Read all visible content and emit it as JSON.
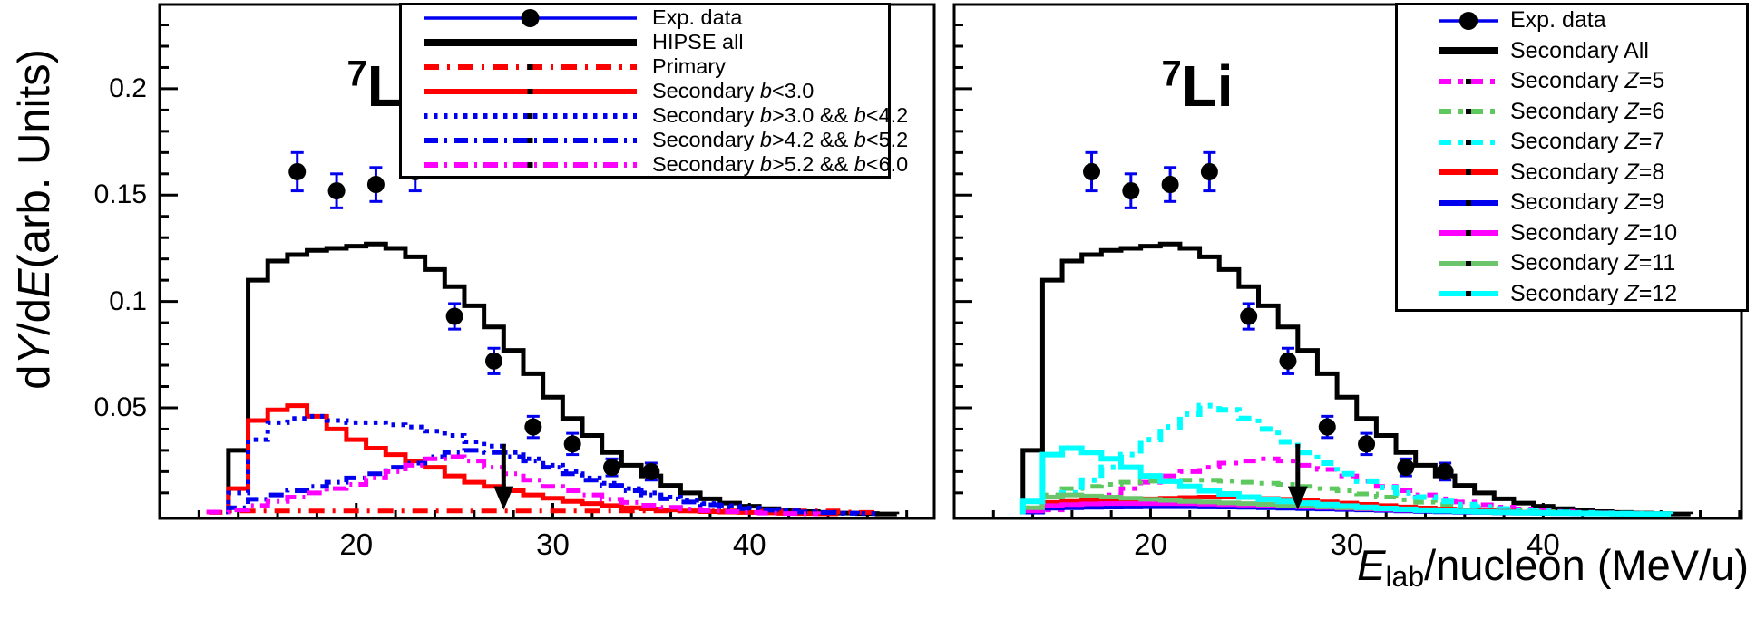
{
  "figure": {
    "background": "#ffffff",
    "ylabel_text": "dY/dE(arb. Units)",
    "xlabel_text": "E_lab/nucleon (MeV/u)",
    "ylabel_parts": [
      {
        "text": "d",
        "style": "normal"
      },
      {
        "text": "Y",
        "style": "italic"
      },
      {
        "text": "/d",
        "style": "normal"
      },
      {
        "text": "E",
        "style": "italic"
      },
      {
        "text": "(arb. Units)",
        "style": "normal"
      }
    ],
    "xlabel_parts": [
      {
        "text": "E",
        "style": "italic"
      },
      {
        "text": "lab",
        "style": "sub"
      },
      {
        "text": "/nucleon (MeV/u)",
        "style": "normal"
      }
    ],
    "colors": {
      "black": "#000000",
      "blue": "#0000ee",
      "red": "#ff0000",
      "magenta": "#ff00ff",
      "cyan": "#00ffff",
      "green_dashed": "#5dc85d",
      "green_solid": "#6cc46c",
      "exp_marker": "#000000",
      "exp_errorbar": "#0000ee"
    }
  },
  "chart_data": [
    {
      "type": "line",
      "panel": "left",
      "title": "7Li",
      "title_sup": "7",
      "title_main": "Li",
      "xlabel": "E_lab/nucleon (MeV/u)",
      "ylabel": "dY/dE(arb. Units)",
      "xlim": [
        10,
        49.4
      ],
      "ylim": [
        0,
        0.24
      ],
      "xticks": [
        20,
        30,
        40
      ],
      "xtick_labels": [
        "20",
        "30",
        "40"
      ],
      "yticks": [
        0.05,
        0.1,
        0.15,
        0.2
      ],
      "ytick_labels": [
        "0.05",
        "0.1",
        "0.15",
        "0.2"
      ],
      "x_minor_step": 2,
      "y_minor_step": 0.01,
      "grid": false,
      "legend_position": "top-right-inside",
      "arrow": {
        "x": 27.5,
        "y_from": 0.033,
        "y_to": 0.002,
        "color": "#000000"
      },
      "exp_data": {
        "label": "Exp. data",
        "marker": "circle",
        "marker_color": "#000000",
        "line_color": "#0000ee",
        "x": [
          17,
          19,
          21,
          23,
          25,
          27,
          29,
          31,
          33,
          35
        ],
        "y": [
          0.161,
          0.152,
          0.155,
          0.161,
          0.093,
          0.072,
          0.041,
          0.033,
          0.022,
          0.02
        ],
        "yerr": [
          0.009,
          0.008,
          0.008,
          0.009,
          0.006,
          0.006,
          0.005,
          0.005,
          0.004,
          0.004
        ]
      },
      "series": [
        {
          "name": "HIPSE all",
          "color": "#000000",
          "dash": "",
          "width": 5,
          "x_start": 14,
          "bin_width": 1,
          "y": [
            0.03,
            0.11,
            0.119,
            0.122,
            0.124,
            0.125,
            0.126,
            0.127,
            0.125,
            0.121,
            0.115,
            0.107,
            0.098,
            0.088,
            0.077,
            0.066,
            0.055,
            0.045,
            0.037,
            0.029,
            0.023,
            0.018,
            0.0135,
            0.01,
            0.0072,
            0.0052,
            0.0037,
            0.0026,
            0.0018,
            0.0012,
            0.0008,
            0.0005,
            0.0003,
            0.0001
          ]
        },
        {
          "name": "Primary",
          "color": "#ff0000",
          "dash": "17 9 3 9",
          "width": 5,
          "x_start": 13,
          "bin_width": 1,
          "y": [
            0.0008,
            0.0015,
            0.0015,
            0.0015,
            0.0015,
            0.0015,
            0.0015,
            0.0015,
            0.0015,
            0.0015,
            0.0015,
            0.0015,
            0.0015,
            0.0015,
            0.0015,
            0.0015,
            0.0015,
            0.0015,
            0.0015,
            0.0015,
            0.0015,
            0.0015,
            0.0015,
            0.0015,
            0.0015,
            0.0015,
            0.0015,
            0.0015,
            0.0015,
            0.0015,
            0.0015,
            0.0015,
            0.001,
            0.0008
          ]
        },
        {
          "name": "Secondary b<3.0",
          "color": "#ff0000",
          "dash": "",
          "width": 5,
          "x_start": 14,
          "bin_width": 1,
          "y": [
            0.012,
            0.044,
            0.049,
            0.051,
            0.046,
            0.04,
            0.035,
            0.031,
            0.028,
            0.025,
            0.022,
            0.018,
            0.015,
            0.013,
            0.011,
            0.009,
            0.0075,
            0.006,
            0.005,
            0.004,
            0.003,
            0.0025,
            0.002,
            0.0015,
            0.0012,
            0.001,
            0.0008,
            0.0006,
            0.0004,
            0.0003,
            0.0002
          ]
        },
        {
          "name": "Secondary b>3.0 && b<4.2",
          "color": "#0000ee",
          "dash": "4.5 6.5",
          "width": 5,
          "x_start": 14,
          "bin_width": 1,
          "y": [
            0.01,
            0.035,
            0.043,
            0.045,
            0.046,
            0.044,
            0.043,
            0.043,
            0.042,
            0.041,
            0.039,
            0.037,
            0.034,
            0.032,
            0.029,
            0.026,
            0.023,
            0.02,
            0.017,
            0.0145,
            0.012,
            0.01,
            0.008,
            0.0065,
            0.005,
            0.004,
            0.003,
            0.0022,
            0.0016,
            0.0011,
            0.0008,
            0.0005,
            0.0003
          ]
        },
        {
          "name": "Secondary b>4.2 && b<5.2",
          "color": "#0000ee",
          "dash": "16 7 3 7",
          "width": 5,
          "x_start": 14,
          "bin_width": 1,
          "y": [
            0.003,
            0.007,
            0.009,
            0.011,
            0.013,
            0.015,
            0.017,
            0.019,
            0.022,
            0.024,
            0.027,
            0.029,
            0.03,
            0.029,
            0.027,
            0.025,
            0.022,
            0.019,
            0.016,
            0.0135,
            0.011,
            0.009,
            0.0072,
            0.0057,
            0.0044,
            0.0034,
            0.0026,
            0.0019,
            0.0014,
            0.001,
            0.0007,
            0.0004
          ]
        },
        {
          "name": "Secondary b>5.2 && b<6.0",
          "color": "#ff00ff",
          "dash": "16 7 3 7",
          "width": 5,
          "x_start": 13,
          "bin_width": 1,
          "y": [
            0.001,
            0.002,
            0.004,
            0.006,
            0.008,
            0.01,
            0.012,
            0.014,
            0.017,
            0.02,
            0.023,
            0.026,
            0.027,
            0.025,
            0.022,
            0.019,
            0.016,
            0.013,
            0.011,
            0.009,
            0.007,
            0.0055,
            0.0042,
            0.0032,
            0.0024,
            0.0017,
            0.0012,
            0.0008,
            0.0005,
            0.0003,
            0.0002
          ]
        }
      ]
    },
    {
      "type": "line",
      "panel": "right",
      "title": "7Li",
      "title_sup": "7",
      "title_main": "Li",
      "xlabel": "E_lab/nucleon (MeV/u)",
      "ylabel": "dY/dE(arb. Units)",
      "xlim": [
        10,
        50.1
      ],
      "ylim": [
        0,
        0.24
      ],
      "xticks": [
        20,
        30,
        40
      ],
      "xtick_labels": [
        "20",
        "30",
        "40"
      ],
      "yticks": [
        0.05,
        0.1,
        0.15,
        0.2
      ],
      "ytick_labels": [],
      "x_minor_step": 2,
      "y_minor_step": 0.01,
      "grid": false,
      "legend_position": "top-right-inside",
      "arrow": {
        "x": 27.5,
        "y_from": 0.033,
        "y_to": 0.002,
        "color": "#000000"
      },
      "exp_data": {
        "label": "Exp. data",
        "marker": "circle",
        "marker_color": "#000000",
        "line_color": "#0000ee",
        "x": [
          17,
          19,
          21,
          23,
          25,
          27,
          29,
          31,
          33,
          35
        ],
        "y": [
          0.161,
          0.152,
          0.155,
          0.161,
          0.093,
          0.072,
          0.041,
          0.033,
          0.022,
          0.02
        ],
        "yerr": [
          0.009,
          0.008,
          0.008,
          0.009,
          0.006,
          0.006,
          0.005,
          0.005,
          0.004,
          0.004
        ]
      },
      "series": [
        {
          "name": "Secondary All",
          "color": "#000000",
          "dash": "",
          "width": 5,
          "x_start": 14,
          "bin_width": 1,
          "y": [
            0.03,
            0.11,
            0.119,
            0.122,
            0.124,
            0.125,
            0.126,
            0.127,
            0.125,
            0.121,
            0.115,
            0.107,
            0.098,
            0.088,
            0.077,
            0.066,
            0.055,
            0.045,
            0.037,
            0.029,
            0.023,
            0.018,
            0.0135,
            0.01,
            0.0072,
            0.0052,
            0.0037,
            0.0026,
            0.0018,
            0.0012,
            0.0008,
            0.0005,
            0.0003,
            0.0001
          ]
        },
        {
          "name": "Secondary Z=5",
          "color": "#ff00ff",
          "dash": "14 8 5 8",
          "width": 5,
          "x_start": 15,
          "bin_width": 1,
          "y": [
            0.002,
            0.004,
            0.006,
            0.009,
            0.012,
            0.015,
            0.018,
            0.02,
            0.022,
            0.024,
            0.025,
            0.026,
            0.025,
            0.023,
            0.021,
            0.018,
            0.0155,
            0.013,
            0.011,
            0.009,
            0.0072,
            0.0057,
            0.0044,
            0.0033,
            0.0025,
            0.0018,
            0.0013,
            0.0009,
            0.0006,
            0.0004
          ]
        },
        {
          "name": "Secondary Z=6",
          "color": "#5dc85d",
          "dash": "14 8 5 8",
          "width": 5,
          "x_start": 14,
          "bin_width": 1,
          "y": [
            0.003,
            0.009,
            0.012,
            0.013,
            0.014,
            0.015,
            0.0155,
            0.016,
            0.016,
            0.016,
            0.0155,
            0.015,
            0.0145,
            0.014,
            0.013,
            0.012,
            0.011,
            0.0095,
            0.008,
            0.0068,
            0.0056,
            0.0045,
            0.0036,
            0.0028,
            0.0021,
            0.0016,
            0.0012,
            0.0008,
            0.0005,
            0.0003
          ]
        },
        {
          "name": "Secondary Z=7",
          "color": "#00ffff",
          "dash": "14 8 5 8",
          "width": 6,
          "x_start": 15,
          "bin_width": 1,
          "y": [
            0.004,
            0.01,
            0.016,
            0.022,
            0.028,
            0.035,
            0.041,
            0.047,
            0.051,
            0.049,
            0.045,
            0.04,
            0.034,
            0.029,
            0.024,
            0.019,
            0.0155,
            0.0125,
            0.01,
            0.008,
            0.006,
            0.0045,
            0.0034,
            0.0025,
            0.0018,
            0.0013,
            0.0009,
            0.0006,
            0.0004,
            0.0003,
            0.0002
          ]
        },
        {
          "name": "Secondary Z=8",
          "color": "#ff0000",
          "dash": "",
          "width": 5,
          "x_start": 14,
          "bin_width": 1,
          "y": [
            0.002,
            0.0055,
            0.006,
            0.0065,
            0.007,
            0.007,
            0.0072,
            0.0075,
            0.0078,
            0.008,
            0.008,
            0.0078,
            0.0074,
            0.007,
            0.0064,
            0.0058,
            0.0052,
            0.0046,
            0.004,
            0.0034,
            0.0029,
            0.0024,
            0.002,
            0.0016,
            0.0013,
            0.001,
            0.0008,
            0.0006,
            0.0005,
            0.0004,
            0.0003,
            0.0002,
            0.0001
          ]
        },
        {
          "name": "Secondary Z=9",
          "color": "#0000ee",
          "dash": "",
          "width": 5,
          "x_start": 14,
          "bin_width": 1,
          "y": [
            0.001,
            0.0028,
            0.003,
            0.0032,
            0.0033,
            0.0034,
            0.0035,
            0.0035,
            0.0035,
            0.0034,
            0.0033,
            0.0032,
            0.003,
            0.0028,
            0.0026,
            0.0024,
            0.0022,
            0.002,
            0.0018,
            0.0015,
            0.0013,
            0.0011,
            0.0009,
            0.0008,
            0.0006,
            0.0005,
            0.0004,
            0.0003,
            0.0002,
            0.00015,
            0.0001
          ]
        },
        {
          "name": "Secondary Z=10",
          "color": "#ff00ff",
          "dash": "",
          "width": 5,
          "x_start": 14,
          "bin_width": 1,
          "y": [
            0.0015,
            0.004,
            0.0045,
            0.0048,
            0.005,
            0.005,
            0.005,
            0.005,
            0.0049,
            0.0047,
            0.0045,
            0.0043,
            0.004,
            0.0037,
            0.0034,
            0.0031,
            0.0028,
            0.0025,
            0.0022,
            0.0019,
            0.0016,
            0.0014,
            0.0011,
            0.0009,
            0.0007,
            0.0006,
            0.0005,
            0.0004,
            0.0003,
            0.0002,
            0.0001
          ]
        },
        {
          "name": "Secondary Z=11",
          "color": "#6cc46c",
          "dash": "",
          "width": 5,
          "x_start": 14,
          "bin_width": 1,
          "y": [
            0.003,
            0.008,
            0.009,
            0.0085,
            0.008,
            0.0075,
            0.007,
            0.0065,
            0.006,
            0.0057,
            0.0053,
            0.005,
            0.0046,
            0.0042,
            0.0038,
            0.0034,
            0.003,
            0.0027,
            0.0024,
            0.0021,
            0.0018,
            0.0015,
            0.0013,
            0.0011,
            0.0009,
            0.0007,
            0.0006,
            0.0005,
            0.0004,
            0.0003,
            0.0002,
            0.0001
          ]
        },
        {
          "name": "Secondary Z=12",
          "color": "#00ffff",
          "dash": "",
          "width": 6,
          "x_start": 14,
          "bin_width": 1,
          "y": [
            0.006,
            0.028,
            0.031,
            0.029,
            0.026,
            0.022,
            0.018,
            0.0155,
            0.013,
            0.011,
            0.0095,
            0.008,
            0.007,
            0.006,
            0.0052,
            0.0045,
            0.0038,
            0.0032,
            0.0027,
            0.0023,
            0.0019,
            0.0016,
            0.0013,
            0.0011,
            0.0009,
            0.0007,
            0.0006,
            0.0005,
            0.0004,
            0.0003,
            0.0002,
            0.0001,
            0.0001
          ]
        }
      ]
    }
  ]
}
